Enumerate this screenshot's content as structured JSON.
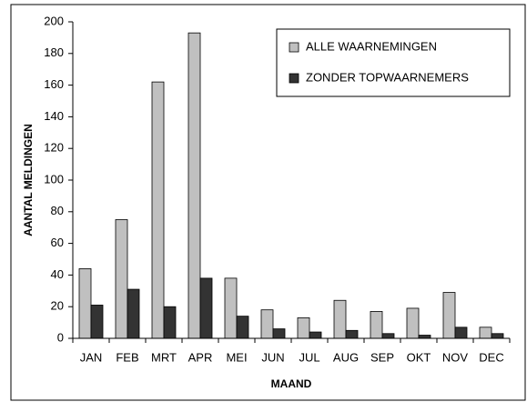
{
  "chart_data": {
    "type": "bar",
    "categories": [
      "JAN",
      "FEB",
      "MRT",
      "APR",
      "MEI",
      "JUN",
      "JUL",
      "AUG",
      "SEP",
      "OKT",
      "NOV",
      "DEC"
    ],
    "series": [
      {
        "name": "ALLE WAARNEMINGEN",
        "color": "#c0c0c0",
        "values": [
          44,
          75,
          162,
          193,
          38,
          18,
          13,
          24,
          17,
          19,
          29,
          7
        ]
      },
      {
        "name": "ZONDER TOPWAARNEMERS",
        "color": "#333333",
        "values": [
          21,
          31,
          20,
          38,
          14,
          6,
          4,
          5,
          3,
          2,
          7,
          3
        ]
      }
    ],
    "xlabel": "MAAND",
    "ylabel": "AANTAL MELDINGEN",
    "ylim": [
      0,
      200
    ],
    "yticks": [
      0,
      20,
      40,
      60,
      80,
      100,
      120,
      140,
      160,
      180,
      200
    ],
    "grid": false,
    "legend": "upper right"
  }
}
